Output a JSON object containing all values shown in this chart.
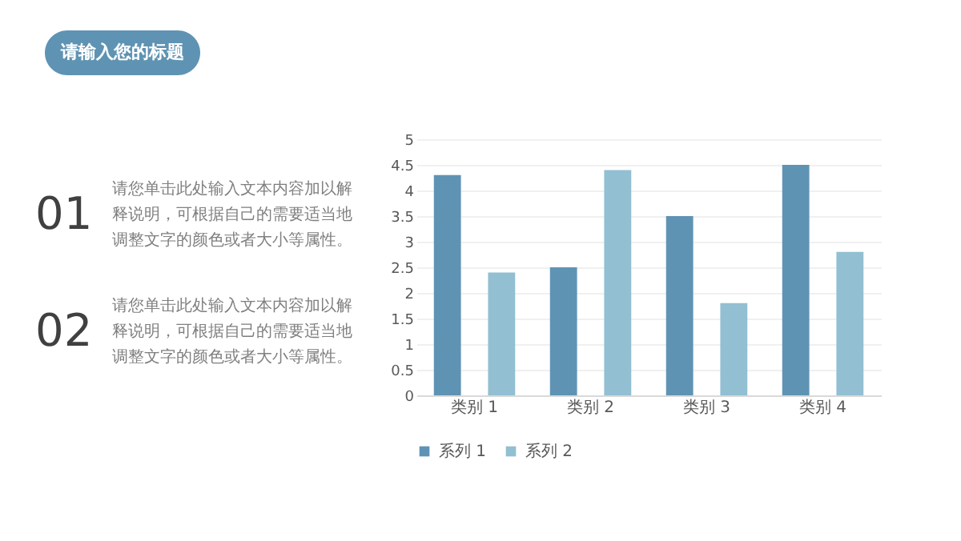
{
  "chart_data": {
    "type": "bar",
    "title": "请输入您的标题",
    "annotations": [
      "01",
      "请您单击此处输入文本内容加以解释说明，可根据自己的需要适当地调整文字的颜色或者大小等属性。",
      "02",
      "请您单击此处输入文本内容加以解释说明，可根据自己的需要适当地调整文字的颜色或者大小等属性。"
    ],
    "categories": [
      "类别 1",
      "类别 2",
      "类别 3",
      "类别 4"
    ],
    "series": [
      {
        "name": "系列 1",
        "color": "#5f93b3",
        "values": [
          4.3,
          2.5,
          3.5,
          4.5
        ]
      },
      {
        "name": "系列 2",
        "color": "#92bfd2",
        "values": [
          2.4,
          4.4,
          1.8,
          2.8
        ]
      }
    ],
    "ylim": [
      0,
      5
    ],
    "yticks": [
      0,
      0.5,
      1,
      1.5,
      2,
      2.5,
      3,
      3.5,
      4,
      4.5,
      5
    ],
    "grid": "y",
    "legend": "bottom"
  }
}
